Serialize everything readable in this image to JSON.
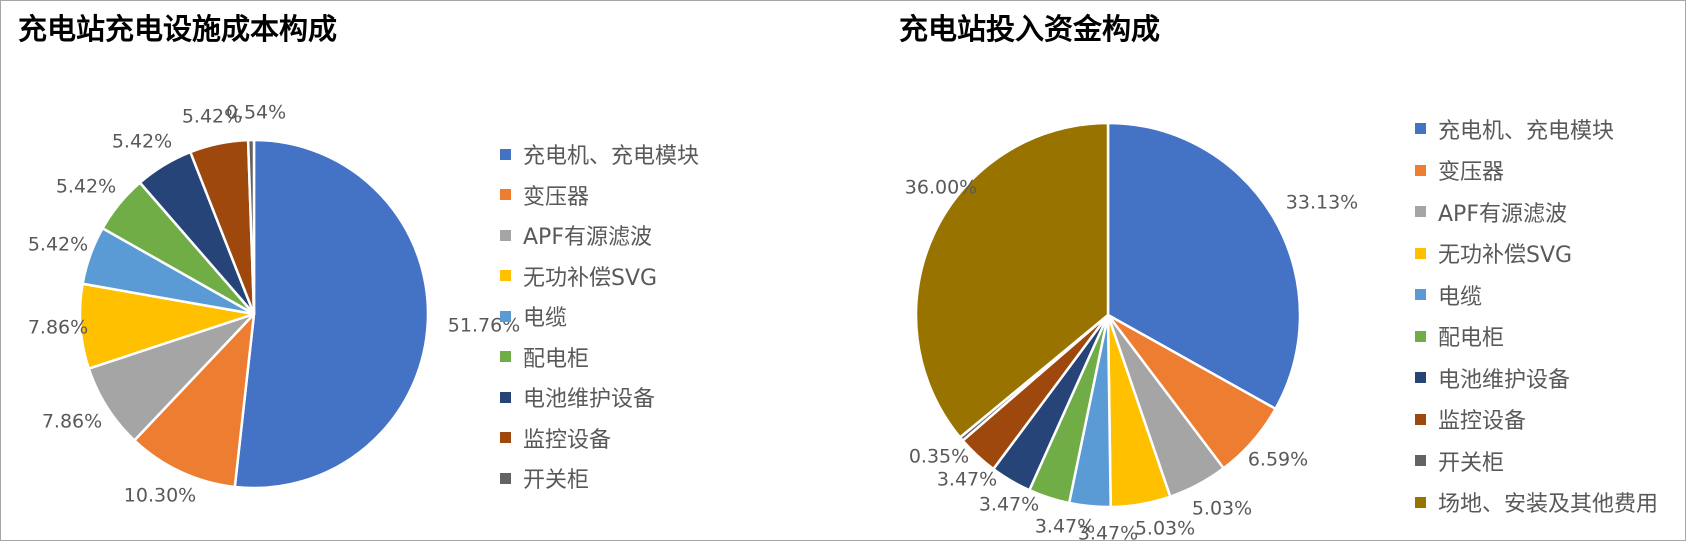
{
  "chart_data": [
    {
      "type": "pie",
      "title": "充电站充电设施成本构成",
      "categories": [
        "充电机、充电模块",
        "变压器",
        "APF有源滤波",
        "无功补偿SVG",
        "电缆",
        "配电柜",
        "电池维护设备",
        "监控设备",
        "开关柜"
      ],
      "values": [
        51.76,
        10.3,
        7.86,
        7.86,
        5.42,
        5.42,
        5.42,
        5.42,
        0.54
      ],
      "data_labels": [
        "51.76%",
        "10.30%",
        "7.86%",
        "7.86%",
        "5.42%",
        "5.42%",
        "5.42%",
        "5.42%",
        "0.54%"
      ],
      "colors": [
        "#4472C4",
        "#ED7D31",
        "#A5A5A5",
        "#FFC000",
        "#5B9BD5",
        "#70AD47",
        "#264478",
        "#9E480E",
        "#636363"
      ],
      "legend_position": "right"
    },
    {
      "type": "pie",
      "title": "充电站投入资金构成",
      "categories": [
        "充电机、充电模块",
        "变压器",
        "APF有源滤波",
        "无功补偿SVG",
        "电缆",
        "配电柜",
        "电池维护设备",
        "监控设备",
        "开关柜",
        "场地、安装及其他费用"
      ],
      "values": [
        33.13,
        6.59,
        5.03,
        5.03,
        3.47,
        3.47,
        3.47,
        3.47,
        0.35,
        36.0
      ],
      "data_labels": [
        "33.13%",
        "6.59%",
        "5.03%",
        "5.03%",
        "3.47%",
        "3.47%",
        "3.47%",
        "3.47%",
        "0.35%",
        "36.00%"
      ],
      "colors": [
        "#4472C4",
        "#ED7D31",
        "#A5A5A5",
        "#FFC000",
        "#5B9BD5",
        "#70AD47",
        "#264478",
        "#9E480E",
        "#636363",
        "#997300"
      ],
      "legend_position": "right"
    }
  ]
}
